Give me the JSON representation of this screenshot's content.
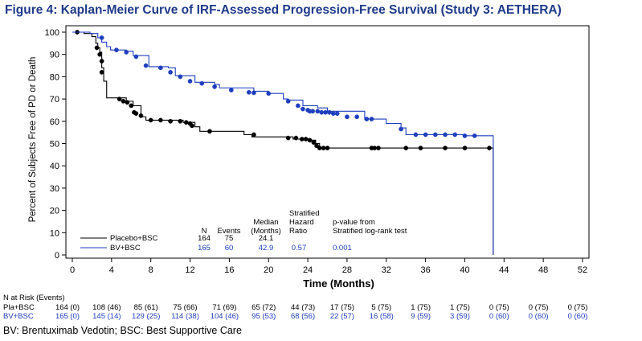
{
  "title": "Figure 4: Kaplan-Meier Curve of IRF-Assessed Progression-Free Survival (Study 3: AETHERA)",
  "footnote": "BV: Brentuximab Vedotin; BSC: Best Supportive Care",
  "chart_data": {
    "type": "line",
    "title": "Figure 4: Kaplan-Meier Curve of IRF-Assessed Progression-Free Survival (Study 3: AETHERA)",
    "xlabel": "Time (Months)",
    "ylabel": "Percent of Subjects Free of PD or Death",
    "xlim": [
      0,
      52
    ],
    "ylim": [
      0,
      100
    ],
    "x_ticks": [
      0,
      4,
      8,
      12,
      16,
      20,
      24,
      28,
      32,
      36,
      40,
      44,
      48,
      52
    ],
    "y_ticks": [
      0,
      10,
      20,
      30,
      40,
      50,
      60,
      70,
      80,
      90,
      100
    ],
    "grid": false,
    "series": [
      {
        "name": "Placebo+BSC",
        "color": "#000000",
        "steps": [
          [
            0,
            100
          ],
          [
            1.2,
            99.4
          ],
          [
            2,
            98
          ],
          [
            2.4,
            95
          ],
          [
            2.6,
            93
          ],
          [
            2.8,
            91
          ],
          [
            3,
            84
          ],
          [
            3.2,
            78
          ],
          [
            3.5,
            70.5
          ],
          [
            5.5,
            69
          ],
          [
            6.2,
            67
          ],
          [
            7,
            62
          ],
          [
            7.5,
            60.5
          ],
          [
            11.3,
            59.5
          ],
          [
            12.5,
            57.5
          ],
          [
            13,
            55.5
          ],
          [
            17.5,
            54
          ],
          [
            18.3,
            53
          ],
          [
            22.5,
            52
          ],
          [
            24.2,
            51.5
          ],
          [
            24.8,
            50
          ],
          [
            25.2,
            48
          ],
          [
            42.9,
            48
          ]
        ],
        "censored": [
          [
            0.5,
            100
          ],
          [
            2.5,
            93
          ],
          [
            2.8,
            90
          ],
          [
            3,
            87
          ],
          [
            3,
            82
          ],
          [
            4.8,
            70
          ],
          [
            5.2,
            69
          ],
          [
            5.6,
            68.5
          ],
          [
            6,
            67
          ],
          [
            6.3,
            64
          ],
          [
            6.5,
            63.5
          ],
          [
            7,
            62.5
          ],
          [
            8,
            60.5
          ],
          [
            9,
            60.5
          ],
          [
            10,
            60
          ],
          [
            11,
            60
          ],
          [
            11.6,
            59.5
          ],
          [
            12,
            59
          ],
          [
            12.2,
            58
          ],
          [
            14,
            55.5
          ],
          [
            18.5,
            54
          ],
          [
            22,
            52.5
          ],
          [
            22.8,
            52.5
          ],
          [
            23.4,
            52
          ],
          [
            23.8,
            52
          ],
          [
            24.2,
            51.5
          ],
          [
            24.6,
            50.5
          ],
          [
            24.9,
            49
          ],
          [
            25.2,
            48
          ],
          [
            25.6,
            48
          ],
          [
            26,
            48
          ],
          [
            30.5,
            48
          ],
          [
            30.8,
            48
          ],
          [
            31.2,
            48
          ],
          [
            34,
            48
          ],
          [
            35.5,
            48
          ],
          [
            38,
            48
          ],
          [
            40,
            48
          ],
          [
            42.5,
            48
          ]
        ],
        "end_x": 42.9,
        "end_y": 0
      },
      {
        "name": "BV+BSC",
        "color": "#1f3fbf",
        "steps": [
          [
            0,
            100
          ],
          [
            1.8,
            99.4
          ],
          [
            2.6,
            97.5
          ],
          [
            3,
            95.5
          ],
          [
            3.5,
            93.5
          ],
          [
            3.9,
            92
          ],
          [
            5.5,
            91.5
          ],
          [
            6.2,
            89.5
          ],
          [
            7.8,
            84.5
          ],
          [
            9.8,
            84
          ],
          [
            10.5,
            80.5
          ],
          [
            12.5,
            77.5
          ],
          [
            14.5,
            76.5
          ],
          [
            15,
            75
          ],
          [
            18.5,
            73.5
          ],
          [
            20,
            72.5
          ],
          [
            21.5,
            70
          ],
          [
            22,
            69.5
          ],
          [
            23.5,
            67
          ],
          [
            25,
            66
          ],
          [
            26,
            64.5
          ],
          [
            29.8,
            61
          ],
          [
            32,
            59
          ],
          [
            33.5,
            57
          ],
          [
            34,
            54
          ],
          [
            40,
            53.5
          ],
          [
            42.9,
            53.5
          ]
        ],
        "censored": [
          [
            3,
            97.5
          ],
          [
            4.5,
            92
          ],
          [
            5.5,
            91
          ],
          [
            6.5,
            89
          ],
          [
            7.5,
            85
          ],
          [
            9,
            84
          ],
          [
            10,
            82
          ],
          [
            11,
            80
          ],
          [
            12,
            78
          ],
          [
            13.2,
            77
          ],
          [
            14.5,
            75.5
          ],
          [
            16.2,
            74
          ],
          [
            18,
            73
          ],
          [
            18.5,
            72.8
          ],
          [
            20,
            72.5
          ],
          [
            22,
            69
          ],
          [
            23,
            67
          ],
          [
            23.5,
            65.5
          ],
          [
            24,
            65
          ],
          [
            24.2,
            64.5
          ],
          [
            24.5,
            64.5
          ],
          [
            25,
            64.5
          ],
          [
            25.4,
            64
          ],
          [
            25.8,
            64
          ],
          [
            26.2,
            64
          ],
          [
            26.6,
            63.5
          ],
          [
            27,
            63.5
          ],
          [
            28,
            62
          ],
          [
            29,
            62
          ],
          [
            30,
            61
          ],
          [
            30.5,
            61
          ],
          [
            33.5,
            56.5
          ],
          [
            35,
            54
          ],
          [
            36,
            54
          ],
          [
            37,
            54
          ],
          [
            38,
            54
          ],
          [
            39,
            54
          ],
          [
            40,
            53.5
          ],
          [
            41,
            53.5
          ]
        ],
        "end_x": 42.9,
        "end_y": 0
      }
    ],
    "legend": {
      "placement": "bottom-left",
      "headers": [
        "N",
        "Events",
        "Median (Months)",
        "Stratified Hazard Ratio",
        "p-value from Stratified log-rank test"
      ],
      "rows": [
        {
          "label": "Placebo+BSC",
          "n": "164",
          "events": "75",
          "median": "24.1",
          "hr": "",
          "p": ""
        },
        {
          "label": "BV+BSC",
          "n": "165",
          "events": "60",
          "median": "42.9",
          "hr": "0.57",
          "p": "0.001"
        }
      ]
    },
    "at_risk": {
      "title": "N at Risk (Events)",
      "rows": [
        {
          "label": "Pla+BSC",
          "color": "#000000",
          "values": [
            "164 (0)",
            "108 (46)",
            "85 (61)",
            "75 (66)",
            "71 (69)",
            "65 (72)",
            "44 (73)",
            "17 (75)",
            "5 (75)",
            "1 (75)",
            "1 (75)",
            "0 (75)",
            "0 (75)",
            "0 (75)"
          ]
        },
        {
          "label": "BV+BSC",
          "color": "#1f3fbf",
          "values": [
            "165 (0)",
            "145 (14)",
            "129 (25)",
            "114 (38)",
            "104 (46)",
            "95 (53)",
            "68 (56)",
            "22 (57)",
            "16 (58)",
            "9 (59)",
            "3 (59)",
            "0 (60)",
            "0 (60)",
            "0 (60)"
          ]
        }
      ]
    }
  }
}
